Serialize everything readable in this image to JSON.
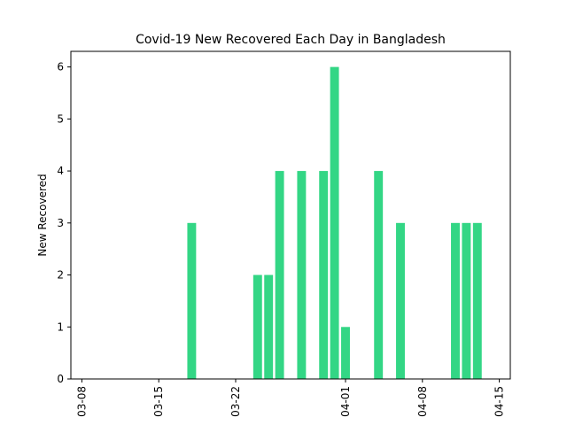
{
  "chart_data": {
    "type": "bar",
    "title": "Covid-19 New Recovered Each Day in Bangladesh",
    "xlabel": "",
    "ylabel": "New Recovered",
    "x_tick_labels": [
      "03-08",
      "03-15",
      "03-22",
      "04-01",
      "04-08",
      "04-15"
    ],
    "x_tick_days": [
      0,
      7,
      14,
      24,
      31,
      38
    ],
    "xlim_days": [
      -1,
      39
    ],
    "y_ticks": [
      0,
      1,
      2,
      3,
      4,
      5,
      6
    ],
    "ylim": [
      0,
      6.3
    ],
    "grid": false,
    "bar_color": "#33d685",
    "bars": [
      {
        "date": "03-18",
        "value": 3
      },
      {
        "date": "03-24",
        "value": 2
      },
      {
        "date": "03-25",
        "value": 2
      },
      {
        "date": "03-26",
        "value": 4
      },
      {
        "date": "03-28",
        "value": 4
      },
      {
        "date": "03-30",
        "value": 4
      },
      {
        "date": "03-31",
        "value": 6
      },
      {
        "date": "04-01",
        "value": 1
      },
      {
        "date": "04-04",
        "value": 4
      },
      {
        "date": "04-06",
        "value": 3
      },
      {
        "date": "04-11",
        "value": 3
      },
      {
        "date": "04-12",
        "value": 3
      },
      {
        "date": "04-13",
        "value": 3
      }
    ]
  }
}
